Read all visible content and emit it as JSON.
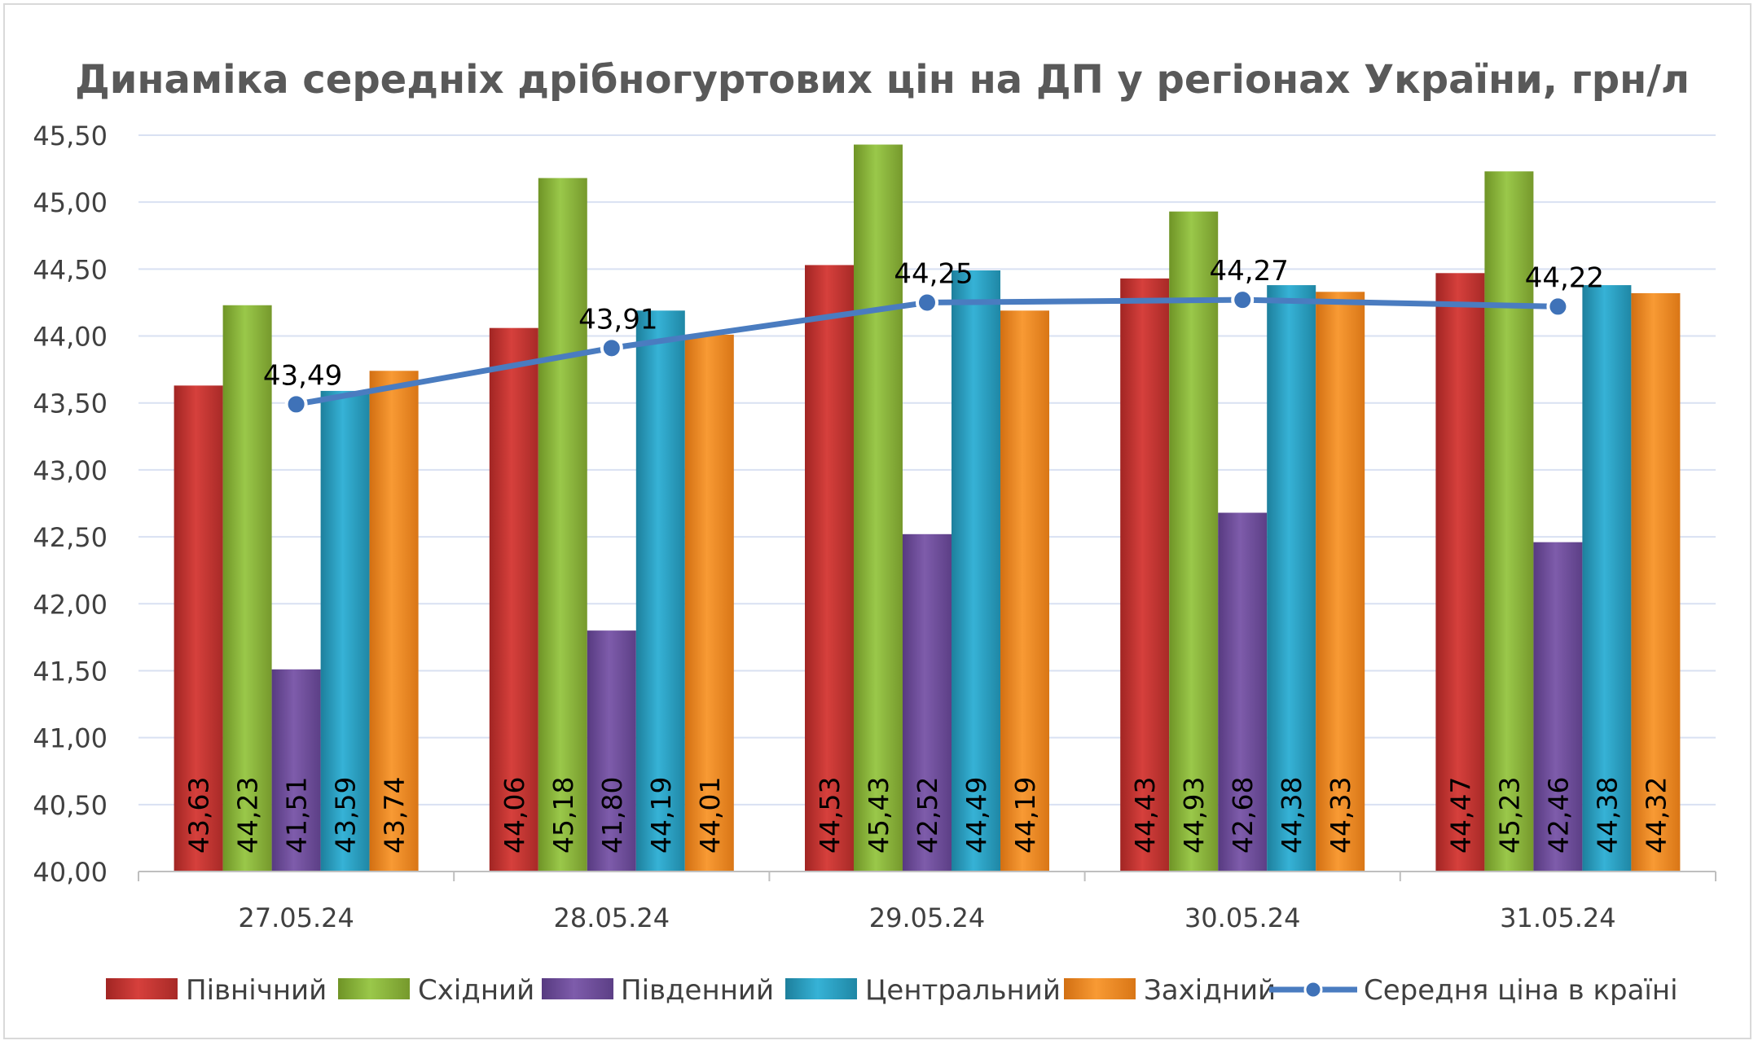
{
  "chart_data": {
    "type": "bar",
    "title": "Динаміка середніх дрібногуртових цін на ДП у регіонах України, грн/л",
    "categories": [
      "27.05.24",
      "28.05.24",
      "29.05.24",
      "30.05.24",
      "31.05.24"
    ],
    "ylim": [
      40.0,
      45.5
    ],
    "yticks": [
      "40,00",
      "40,50",
      "41,00",
      "41,50",
      "42,00",
      "42,50",
      "43,00",
      "43,50",
      "44,00",
      "44,50",
      "45,00",
      "45,50"
    ],
    "grid": true,
    "legend_position": "bottom",
    "series": [
      {
        "name": "Північний",
        "type": "bar",
        "color": "#c0302e",
        "values": [
          43.63,
          44.06,
          44.53,
          44.43,
          44.47
        ],
        "labels": [
          "43,63",
          "44,06",
          "44,53",
          "44,43",
          "44,47"
        ]
      },
      {
        "name": "Східний",
        "type": "bar",
        "color": "#8db33a",
        "values": [
          44.23,
          45.18,
          45.43,
          44.93,
          45.23
        ],
        "labels": [
          "44,23",
          "45,18",
          "45,43",
          "44,93",
          "45,23"
        ]
      },
      {
        "name": "Південний",
        "type": "bar",
        "color": "#6e4c9a",
        "values": [
          41.51,
          41.8,
          42.52,
          42.68,
          42.46
        ],
        "labels": [
          "41,51",
          "41,80",
          "42,52",
          "42,68",
          "42,46"
        ]
      },
      {
        "name": "Центральний",
        "type": "bar",
        "color": "#2ba2c4",
        "values": [
          43.59,
          44.19,
          44.49,
          44.38,
          44.38
        ],
        "labels": [
          "43,59",
          "44,19",
          "44,49",
          "44,38",
          "44,38"
        ]
      },
      {
        "name": "Західний",
        "type": "bar",
        "color": "#f08a24",
        "values": [
          43.74,
          44.01,
          44.19,
          44.33,
          44.32
        ],
        "labels": [
          "43,74",
          "44,01",
          "44,19",
          "44,33",
          "44,32"
        ]
      },
      {
        "name": "Середня ціна в країні",
        "type": "line",
        "color": "#4a7cc0",
        "values": [
          43.49,
          43.91,
          44.25,
          44.27,
          44.22
        ],
        "labels": [
          "43,49",
          "43,91",
          "44,25",
          "44,27",
          "44,22"
        ]
      }
    ]
  }
}
